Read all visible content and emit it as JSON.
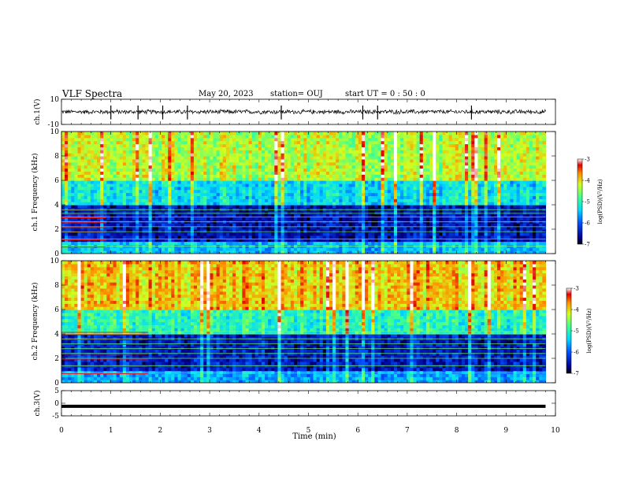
{
  "header": {
    "title": "VLF Spectra",
    "date": "May 20, 2023",
    "station": "station= OUJ",
    "start": "start  UT =   0 : 50 : 0"
  },
  "chart_data": [
    {
      "type": "line",
      "panel": "ch1-waveform",
      "ylabel": "ch.1(V)",
      "ylim": [
        -10,
        10
      ],
      "y_ticks": [
        "10",
        "-10"
      ],
      "baseline_v": 0,
      "noise_amplitude_v": 2,
      "x_data_end_min": 9.8,
      "spikes_min": [
        1.0,
        1.55,
        2.05,
        2.55,
        4.45,
        6.1,
        6.4,
        8.3
      ]
    },
    {
      "type": "heatmap",
      "panel": "ch1-spectrogram",
      "ylabel": "ch.1  Frequency (kHz)",
      "ylim": [
        0,
        10
      ],
      "y_ticks": [
        "0",
        "2",
        "4",
        "6",
        "8",
        "10"
      ],
      "x_data_end_min": 9.8,
      "colorbar": {
        "label": "log(PSD)(V²/Hz)",
        "range": [
          -7,
          -3
        ],
        "ticks": [
          "-3",
          "-4",
          "-5",
          "-6",
          "-7"
        ]
      },
      "log_psd_levels_by_band": [
        {
          "from_khz": 0,
          "to_khz": 1,
          "log_psd": -5.5
        },
        {
          "from_khz": 1,
          "to_khz": 4,
          "log_psd": -6.5
        },
        {
          "from_khz": 4,
          "to_khz": 6,
          "log_psd": -5.3
        },
        {
          "from_khz": 6,
          "to_khz": 10,
          "log_psd": -4.3
        }
      ],
      "narrowband_lines_khz": [
        0.6,
        1.2,
        1.8,
        2.2,
        2.6,
        3.0,
        3.3,
        3.6
      ],
      "interference_end_min": 0.9
    },
    {
      "type": "heatmap",
      "panel": "ch2-spectrogram",
      "ylabel": "ch.2  Frequency (kHz)",
      "ylim": [
        0,
        10
      ],
      "y_ticks": [
        "0",
        "2",
        "4",
        "6",
        "8",
        "10"
      ],
      "x_data_end_min": 9.8,
      "colorbar": {
        "label": "log(PSD)(V²/Hz)",
        "range": [
          -7,
          -3
        ],
        "ticks": [
          "-3",
          "-4",
          "-5",
          "-6",
          "-7"
        ]
      },
      "log_psd_levels_by_band": [
        {
          "from_khz": 0,
          "to_khz": 1,
          "log_psd": -5.6
        },
        {
          "from_khz": 1,
          "to_khz": 4,
          "log_psd": -6.4
        },
        {
          "from_khz": 4,
          "to_khz": 6,
          "log_psd": -5.0
        },
        {
          "from_khz": 6,
          "to_khz": 10,
          "log_psd": -3.9
        }
      ],
      "narrowband_lines_khz": [
        0.8,
        1.4,
        2.0,
        2.4,
        2.8,
        3.2,
        3.6,
        4.0,
        4.2
      ],
      "interference_end_min": 1.75
    },
    {
      "type": "line",
      "panel": "ch3-waveform",
      "ylabel": "ch.3(V)",
      "ylim": [
        -5,
        5
      ],
      "y_ticks": [
        "5",
        "0",
        "-5"
      ],
      "baseline_v": -1.2,
      "x_data_end_min": 9.8
    }
  ],
  "x_axis": {
    "label": "Time  (min)",
    "range": [
      0,
      10
    ],
    "ticks": [
      "0",
      "1",
      "2",
      "3",
      "4",
      "5",
      "6",
      "7",
      "8",
      "9",
      "10"
    ]
  }
}
